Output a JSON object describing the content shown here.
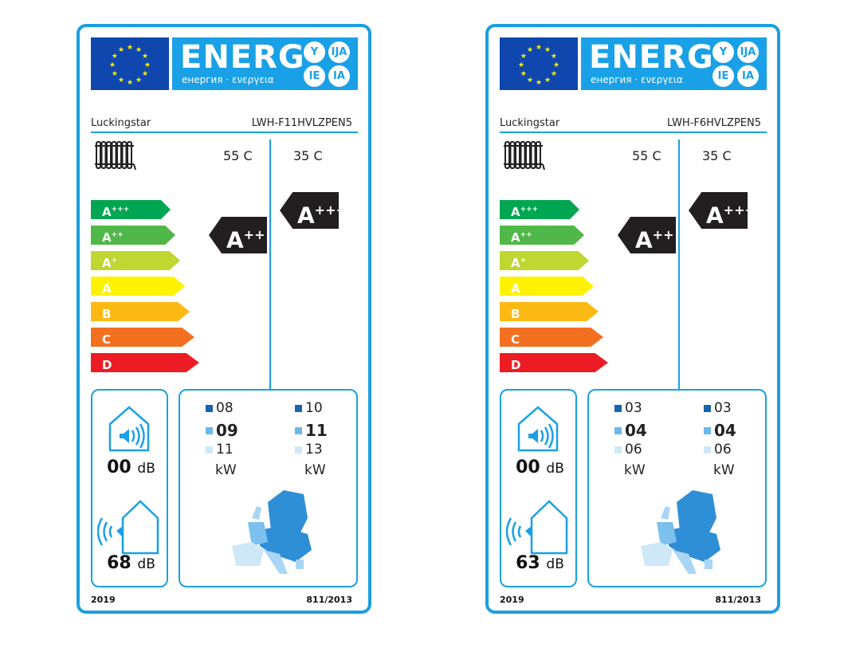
{
  "colors": {
    "frame": "#1a9fe0",
    "eu_blue": "#0f47af",
    "star": "#ffed00",
    "class_colors": [
      "#00a651",
      "#50b848",
      "#bfd730",
      "#fff200",
      "#fdb913",
      "#f37021",
      "#ed1c24"
    ],
    "sq": [
      "#1565b0",
      "#6cb8ea",
      "#cfe8f8"
    ]
  },
  "header": {
    "energ": "ENERG",
    "subtitle": "енергия · ενεργεια",
    "circles": [
      "Y",
      "IJA",
      "IE",
      "IA"
    ]
  },
  "classes": [
    {
      "l": "A",
      "s": "+++"
    },
    {
      "l": "A",
      "s": "++"
    },
    {
      "l": "A",
      "s": "+"
    },
    {
      "l": "A",
      "s": ""
    },
    {
      "l": "B",
      "s": ""
    },
    {
      "l": "C",
      "s": ""
    },
    {
      "l": "D",
      "s": ""
    }
  ],
  "labels": [
    {
      "brand": "Luckingstar",
      "model": "LWH-F11HVLZPEN5",
      "temp_high": "55 C",
      "temp_low": "35 C",
      "rating_high": {
        "l": "A",
        "s": "++"
      },
      "rating_low": {
        "l": "A",
        "s": "+++"
      },
      "indoor_db": "00",
      "outdoor_db": "68",
      "db_unit": "dB",
      "kw_high": [
        "08",
        "09",
        "11"
      ],
      "kw_low": [
        "10",
        "11",
        "13"
      ],
      "kw_unit": "kW",
      "year": "2019",
      "regulation": "811/2013"
    },
    {
      "brand": "Luckingstar",
      "model": "LWH-F6HVLZPEN5",
      "temp_high": "55 C",
      "temp_low": "35 C",
      "rating_high": {
        "l": "A",
        "s": "++"
      },
      "rating_low": {
        "l": "A",
        "s": "+++"
      },
      "indoor_db": "00",
      "outdoor_db": "63",
      "db_unit": "dB",
      "kw_high": [
        "03",
        "04",
        "06"
      ],
      "kw_low": [
        "03",
        "04",
        "06"
      ],
      "kw_unit": "kW",
      "year": "2019",
      "regulation": "811/2013"
    }
  ]
}
